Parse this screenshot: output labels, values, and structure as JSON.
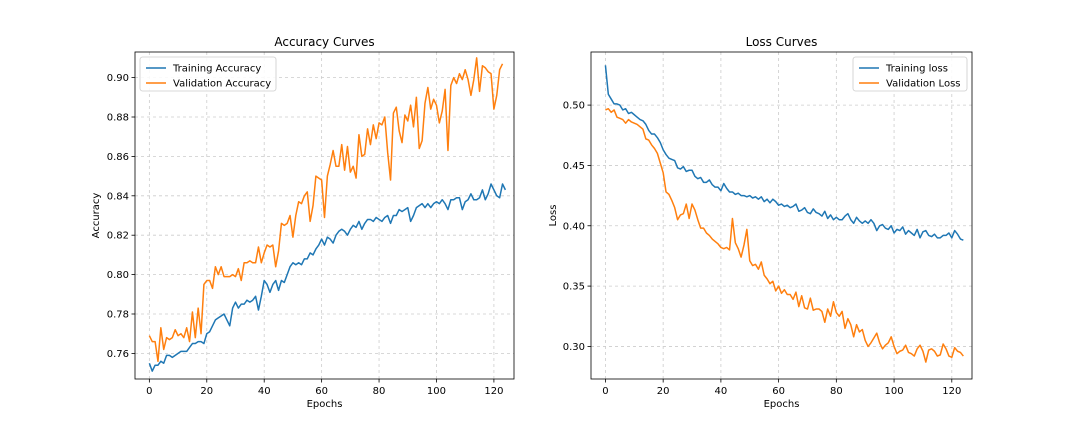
{
  "chart_data": [
    {
      "type": "line",
      "title": "Accuracy Curves",
      "xlabel": "Epochs",
      "ylabel": "Accuracy",
      "xlim": [
        -5,
        127
      ],
      "ylim": [
        0.747,
        0.913
      ],
      "xticks": [
        0,
        20,
        40,
        60,
        80,
        100,
        120
      ],
      "yticks": [
        0.76,
        0.78,
        0.8,
        0.82,
        0.84,
        0.86,
        0.88,
        0.9
      ],
      "ytick_labels": [
        "0.76",
        "0.78",
        "0.80",
        "0.82",
        "0.84",
        "0.86",
        "0.88",
        "0.90"
      ],
      "grid": true,
      "legend_position": "upper-left",
      "series": [
        {
          "name": "Training Accuracy",
          "color": "#1f77b4",
          "values": [
            0.755,
            0.751,
            0.754,
            0.754,
            0.756,
            0.755,
            0.759,
            0.759,
            0.758,
            0.759,
            0.76,
            0.761,
            0.761,
            0.761,
            0.763,
            0.765,
            0.765,
            0.766,
            0.766,
            0.765,
            0.77,
            0.771,
            0.774,
            0.777,
            0.778,
            0.779,
            0.78,
            0.777,
            0.774,
            0.783,
            0.786,
            0.783,
            0.785,
            0.785,
            0.787,
            0.786,
            0.787,
            0.789,
            0.782,
            0.789,
            0.797,
            0.795,
            0.791,
            0.795,
            0.797,
            0.792,
            0.797,
            0.796,
            0.8,
            0.804,
            0.806,
            0.805,
            0.806,
            0.805,
            0.808,
            0.808,
            0.811,
            0.81,
            0.813,
            0.815,
            0.818,
            0.815,
            0.819,
            0.818,
            0.816,
            0.82,
            0.822,
            0.823,
            0.822,
            0.82,
            0.823,
            0.825,
            0.824,
            0.827,
            0.823,
            0.826,
            0.828,
            0.828,
            0.827,
            0.829,
            0.828,
            0.827,
            0.829,
            0.83,
            0.826,
            0.83,
            0.83,
            0.833,
            0.832,
            0.833,
            0.834,
            0.827,
            0.83,
            0.834,
            0.835,
            0.836,
            0.834,
            0.836,
            0.834,
            0.836,
            0.837,
            0.836,
            0.838,
            0.836,
            0.833,
            0.838,
            0.838,
            0.839,
            0.839,
            0.833,
            0.837,
            0.838,
            0.841,
            0.838,
            0.838,
            0.839,
            0.843,
            0.838,
            0.841,
            0.846,
            0.843,
            0.84,
            0.839,
            0.846,
            0.843
          ]
        },
        {
          "name": "Validation Accuracy",
          "color": "#ff7f0e",
          "values": [
            0.769,
            0.766,
            0.766,
            0.756,
            0.773,
            0.762,
            0.768,
            0.767,
            0.768,
            0.772,
            0.769,
            0.77,
            0.768,
            0.773,
            0.766,
            0.781,
            0.768,
            0.783,
            0.77,
            0.795,
            0.797,
            0.797,
            0.793,
            0.804,
            0.8,
            0.804,
            0.799,
            0.799,
            0.799,
            0.8,
            0.799,
            0.803,
            0.797,
            0.806,
            0.806,
            0.807,
            0.806,
            0.806,
            0.814,
            0.806,
            0.811,
            0.815,
            0.814,
            0.815,
            0.804,
            0.812,
            0.826,
            0.825,
            0.826,
            0.83,
            0.819,
            0.83,
            0.837,
            0.836,
            0.84,
            0.842,
            0.827,
            0.835,
            0.85,
            0.849,
            0.848,
            0.829,
            0.85,
            0.856,
            0.863,
            0.855,
            0.855,
            0.866,
            0.853,
            0.865,
            0.852,
            0.855,
            0.849,
            0.871,
            0.86,
            0.861,
            0.874,
            0.866,
            0.876,
            0.869,
            0.877,
            0.876,
            0.88,
            0.862,
            0.848,
            0.882,
            0.885,
            0.873,
            0.867,
            0.881,
            0.878,
            0.886,
            0.875,
            0.89,
            0.864,
            0.868,
            0.887,
            0.895,
            0.884,
            0.889,
            0.886,
            0.877,
            0.883,
            0.894,
            0.863,
            0.896,
            0.9,
            0.897,
            0.902,
            0.899,
            0.904,
            0.899,
            0.891,
            0.899,
            0.91,
            0.893,
            0.906,
            0.905,
            0.903,
            0.902,
            0.884,
            0.891,
            0.904,
            0.907
          ]
        }
      ]
    },
    {
      "type": "line",
      "title": "Loss Curves",
      "xlabel": "Epochs",
      "ylabel": "Loss",
      "xlim": [
        -5,
        127
      ],
      "ylim": [
        0.273,
        0.544
      ],
      "xticks": [
        0,
        20,
        40,
        60,
        80,
        100,
        120
      ],
      "yticks": [
        0.3,
        0.35,
        0.4,
        0.45,
        0.5
      ],
      "ytick_labels": [
        "0.30",
        "0.35",
        "0.40",
        "0.45",
        "0.50"
      ],
      "grid": true,
      "legend_position": "upper-right",
      "series": [
        {
          "name": "Training loss",
          "color": "#1f77b4",
          "values": [
            0.533,
            0.509,
            0.505,
            0.501,
            0.501,
            0.5,
            0.496,
            0.497,
            0.493,
            0.494,
            0.492,
            0.49,
            0.488,
            0.487,
            0.484,
            0.479,
            0.476,
            0.476,
            0.473,
            0.469,
            0.463,
            0.459,
            0.456,
            0.455,
            0.454,
            0.448,
            0.447,
            0.449,
            0.445,
            0.446,
            0.446,
            0.441,
            0.439,
            0.44,
            0.436,
            0.436,
            0.438,
            0.434,
            0.432,
            0.432,
            0.429,
            0.435,
            0.431,
            0.428,
            0.428,
            0.426,
            0.427,
            0.425,
            0.425,
            0.424,
            0.425,
            0.423,
            0.424,
            0.422,
            0.424,
            0.42,
            0.422,
            0.419,
            0.422,
            0.42,
            0.417,
            0.418,
            0.416,
            0.417,
            0.415,
            0.416,
            0.418,
            0.412,
            0.413,
            0.415,
            0.411,
            0.41,
            0.414,
            0.411,
            0.41,
            0.408,
            0.412,
            0.406,
            0.409,
            0.405,
            0.407,
            0.405,
            0.405,
            0.408,
            0.41,
            0.405,
            0.402,
            0.407,
            0.404,
            0.402,
            0.404,
            0.402,
            0.405,
            0.402,
            0.396,
            0.4,
            0.401,
            0.398,
            0.397,
            0.4,
            0.394,
            0.397,
            0.396,
            0.399,
            0.393,
            0.396,
            0.394,
            0.392,
            0.397,
            0.39,
            0.395,
            0.396,
            0.392,
            0.391,
            0.393,
            0.39,
            0.39,
            0.392,
            0.392,
            0.394,
            0.39,
            0.396,
            0.393,
            0.389,
            0.388
          ]
        },
        {
          "name": "Validation Loss",
          "color": "#ff7f0e",
          "values": [
            0.496,
            0.497,
            0.494,
            0.496,
            0.49,
            0.489,
            0.488,
            0.485,
            0.488,
            0.486,
            0.485,
            0.484,
            0.482,
            0.48,
            0.472,
            0.471,
            0.467,
            0.464,
            0.46,
            0.452,
            0.444,
            0.428,
            0.426,
            0.421,
            0.415,
            0.405,
            0.409,
            0.41,
            0.418,
            0.406,
            0.418,
            0.413,
            0.405,
            0.398,
            0.398,
            0.394,
            0.392,
            0.389,
            0.387,
            0.385,
            0.382,
            0.381,
            0.382,
            0.38,
            0.406,
            0.386,
            0.381,
            0.374,
            0.384,
            0.397,
            0.371,
            0.367,
            0.368,
            0.364,
            0.37,
            0.359,
            0.356,
            0.352,
            0.354,
            0.346,
            0.35,
            0.344,
            0.347,
            0.343,
            0.343,
            0.339,
            0.345,
            0.333,
            0.342,
            0.332,
            0.331,
            0.34,
            0.33,
            0.331,
            0.331,
            0.329,
            0.32,
            0.331,
            0.325,
            0.337,
            0.328,
            0.325,
            0.329,
            0.315,
            0.323,
            0.318,
            0.308,
            0.318,
            0.312,
            0.314,
            0.305,
            0.3,
            0.303,
            0.307,
            0.311,
            0.303,
            0.298,
            0.301,
            0.303,
            0.308,
            0.3,
            0.294,
            0.296,
            0.297,
            0.301,
            0.295,
            0.294,
            0.292,
            0.298,
            0.301,
            0.296,
            0.287,
            0.297,
            0.298,
            0.296,
            0.292,
            0.293,
            0.302,
            0.298,
            0.292,
            0.291,
            0.299,
            0.296,
            0.295,
            0.292
          ]
        }
      ]
    }
  ]
}
